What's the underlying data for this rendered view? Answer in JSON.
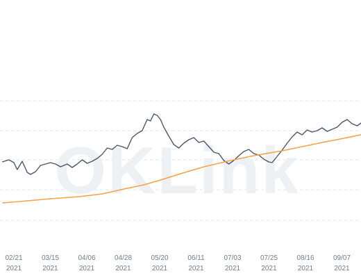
{
  "chart_data": {
    "type": "line",
    "watermark": "OKLink",
    "x_ticks": [
      {
        "date": "02/21",
        "year": "2021"
      },
      {
        "date": "03/15",
        "year": "2021"
      },
      {
        "date": "04/06",
        "year": "2021"
      },
      {
        "date": "04/28",
        "year": "2021"
      },
      {
        "date": "05/20",
        "year": "2021"
      },
      {
        "date": "06/11",
        "year": "2021"
      },
      {
        "date": "07/03",
        "year": "2021"
      },
      {
        "date": "07/25",
        "year": "2021"
      },
      {
        "date": "08/16",
        "year": "2021"
      },
      {
        "date": "09/07",
        "year": "2021"
      }
    ],
    "series": [
      {
        "color": "#4a5468",
        "points": [
          [
            "2021-02-14",
            233
          ],
          [
            "2021-02-18",
            230
          ],
          [
            "2021-02-21",
            234
          ],
          [
            "2021-02-23",
            244
          ],
          [
            "2021-02-26",
            232
          ],
          [
            "2021-03-01",
            248
          ],
          [
            "2021-03-03",
            251
          ],
          [
            "2021-03-06",
            247
          ],
          [
            "2021-03-09",
            238
          ],
          [
            "2021-03-12",
            236
          ],
          [
            "2021-03-15",
            234
          ],
          [
            "2021-03-18",
            236
          ],
          [
            "2021-03-21",
            240
          ],
          [
            "2021-03-25",
            236
          ],
          [
            "2021-03-28",
            241
          ],
          [
            "2021-03-31",
            236
          ],
          [
            "2021-04-03",
            230
          ],
          [
            "2021-04-06",
            235
          ],
          [
            "2021-04-09",
            232
          ],
          [
            "2021-04-12",
            228
          ],
          [
            "2021-04-15",
            222
          ],
          [
            "2021-04-18",
            213
          ],
          [
            "2021-04-21",
            215
          ],
          [
            "2021-04-24",
            209
          ],
          [
            "2021-04-27",
            211
          ],
          [
            "2021-04-30",
            214
          ],
          [
            "2021-05-03",
            198
          ],
          [
            "2021-05-06",
            192
          ],
          [
            "2021-05-09",
            188
          ],
          [
            "2021-05-12",
            172
          ],
          [
            "2021-05-14",
            174
          ],
          [
            "2021-05-16",
            164
          ],
          [
            "2021-05-18",
            166
          ],
          [
            "2021-05-20",
            172
          ],
          [
            "2021-05-22",
            183
          ],
          [
            "2021-05-25",
            196
          ],
          [
            "2021-05-28",
            208
          ],
          [
            "2021-05-31",
            213
          ],
          [
            "2021-06-03",
            206
          ],
          [
            "2021-06-06",
            201
          ],
          [
            "2021-06-09",
            198
          ],
          [
            "2021-06-12",
            205
          ],
          [
            "2021-06-15",
            203
          ],
          [
            "2021-06-18",
            211
          ],
          [
            "2021-06-21",
            219
          ],
          [
            "2021-06-24",
            221
          ],
          [
            "2021-06-27",
            231
          ],
          [
            "2021-06-30",
            236
          ],
          [
            "2021-07-03",
            231
          ],
          [
            "2021-07-06",
            224
          ],
          [
            "2021-07-09",
            218
          ],
          [
            "2021-07-12",
            215
          ],
          [
            "2021-07-15",
            221
          ],
          [
            "2021-07-18",
            223
          ],
          [
            "2021-07-21",
            229
          ],
          [
            "2021-07-24",
            233
          ],
          [
            "2021-07-26",
            234
          ],
          [
            "2021-07-29",
            225
          ],
          [
            "2021-08-01",
            216
          ],
          [
            "2021-08-04",
            206
          ],
          [
            "2021-08-07",
            197
          ],
          [
            "2021-08-10",
            190
          ],
          [
            "2021-08-13",
            194
          ],
          [
            "2021-08-16",
            187
          ],
          [
            "2021-08-19",
            190
          ],
          [
            "2021-08-22",
            188
          ],
          [
            "2021-08-25",
            184
          ],
          [
            "2021-08-28",
            189
          ],
          [
            "2021-08-31",
            186
          ],
          [
            "2021-09-03",
            183
          ],
          [
            "2021-09-06",
            176
          ],
          [
            "2021-09-09",
            172
          ],
          [
            "2021-09-12",
            178
          ],
          [
            "2021-09-15",
            181
          ],
          [
            "2021-09-18",
            176
          ],
          [
            "2021-09-21",
            184
          ],
          [
            "2021-09-24",
            188
          ]
        ]
      },
      {
        "color": "#f5a04a",
        "points": [
          [
            "2021-02-14",
            292
          ],
          [
            "2021-03-01",
            289
          ],
          [
            "2021-03-15",
            286
          ],
          [
            "2021-04-01",
            283
          ],
          [
            "2021-04-15",
            279
          ],
          [
            "2021-04-28",
            272
          ],
          [
            "2021-05-10",
            266
          ],
          [
            "2021-05-20",
            259
          ],
          [
            "2021-06-01",
            250
          ],
          [
            "2021-06-15",
            240
          ],
          [
            "2021-07-01",
            231
          ],
          [
            "2021-07-15",
            224
          ],
          [
            "2021-08-01",
            217
          ],
          [
            "2021-08-15",
            210
          ],
          [
            "2021-08-25",
            205
          ],
          [
            "2021-09-07",
            199
          ],
          [
            "2021-09-15",
            195
          ],
          [
            "2021-09-24",
            191
          ]
        ]
      }
    ]
  }
}
